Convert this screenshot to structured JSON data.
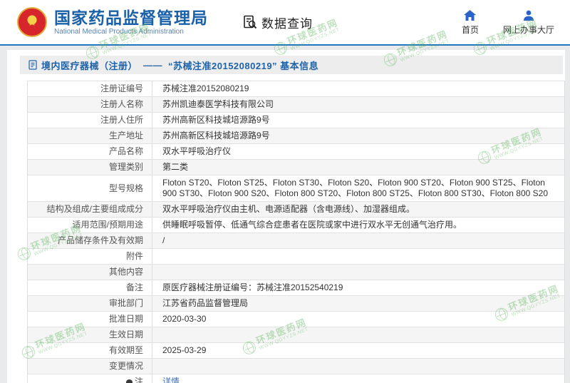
{
  "header": {
    "title": "国家药品监督管理局",
    "subtitle": "National Medical Products Administration",
    "data_query_label": "数据查询",
    "nav": [
      {
        "label": "首页",
        "icon": "home-icon"
      },
      {
        "label": "网上办事大厅",
        "icon": "person-icon"
      }
    ]
  },
  "breadcrumb": {
    "prefix": "境内医疗器械（注册）",
    "separator": "——",
    "detail": "“苏械注准20152080219” 基本信息"
  },
  "table": {
    "rows": [
      {
        "label": "注册证编号",
        "value": "苏械注准20152080219"
      },
      {
        "label": "注册人名称",
        "value": "苏州凯迪泰医学科技有限公司"
      },
      {
        "label": "注册人住所",
        "value": "苏州高新区科技城培源路9号"
      },
      {
        "label": "生产地址",
        "value": "苏州高新区科技城培源路9号"
      },
      {
        "label": "产品名称",
        "value": "双水平呼吸治疗仪"
      },
      {
        "label": "管理类别",
        "value": "第二类"
      },
      {
        "label": "型号规格",
        "value": "Floton ST20、Floton ST25、Floton ST30、Floton S20、Floton 900 ST20、Floton 900 ST25、Floton 900 ST30、Floton 900 S20、Floton 800 ST20、Floton 800 ST25、Floton 800 ST30、Floton 800 S20"
      },
      {
        "label": "结构及组成/主要组成成分",
        "value": "双水平呼吸治疗仪由主机、电源适配器（含电源线）、加湿器组成。"
      },
      {
        "label": "适用范围/预期用途",
        "value": "供睡眠呼吸暂停、低通气综合症患者在医院或家中进行双水平无创通气治疗用。"
      },
      {
        "label": "产品储存条件及有效期",
        "value": "/"
      },
      {
        "label": "附件",
        "value": ""
      },
      {
        "label": "其他内容",
        "value": ""
      },
      {
        "label": "备注",
        "value": "原医疗器械注册证编号：苏械注准20152540219"
      },
      {
        "label": "审批部门",
        "value": "江苏省药品监督管理局"
      },
      {
        "label": "批准日期",
        "value": "2020-03-30"
      },
      {
        "label": "生效日期",
        "value": ""
      },
      {
        "label": "有效期至",
        "value": "2025-03-29"
      },
      {
        "label": "变更情况",
        "value": ""
      },
      {
        "label": "注",
        "label_icon": "note-balloon-icon",
        "value": "详情",
        "value_is_link": true
      }
    ]
  },
  "watermark": {
    "line1": "环球医药网",
    "line2": "WWW.QGYYZS.NET"
  },
  "colors": {
    "brand_blue": "#1a61a9",
    "header_rule_blue": "#2377bd",
    "link_blue": "#3e6db5",
    "watermark_green": "#58b258",
    "emblem_red": "#d6262b"
  }
}
